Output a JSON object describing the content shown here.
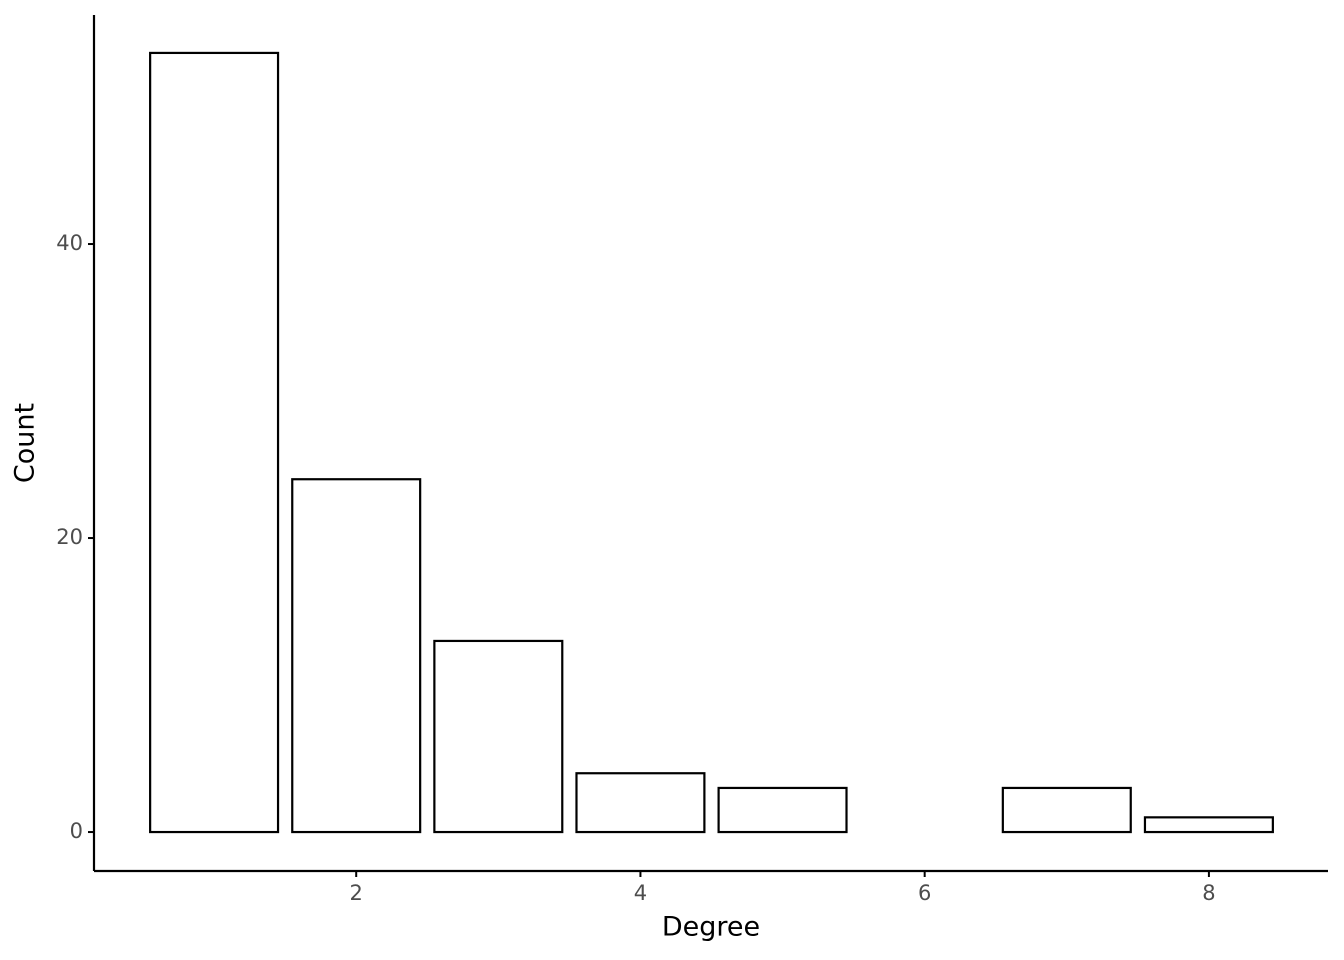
{
  "chart_data": {
    "type": "bar",
    "x_label": "Degree",
    "y_label": "Count",
    "x": [
      1,
      2,
      3,
      4,
      5,
      7,
      8
    ],
    "values": [
      53,
      24,
      13,
      4,
      3,
      3,
      1
    ],
    "color": "#ffffff",
    "edge_color": "#000000",
    "xlim": [
      0.155,
      8.838
    ],
    "xticks": [
      2,
      4,
      6,
      8
    ],
    "ylim": [
      -2.65,
      55.58
    ],
    "yticks": [
      0,
      20,
      40
    ],
    "grid": false
  }
}
